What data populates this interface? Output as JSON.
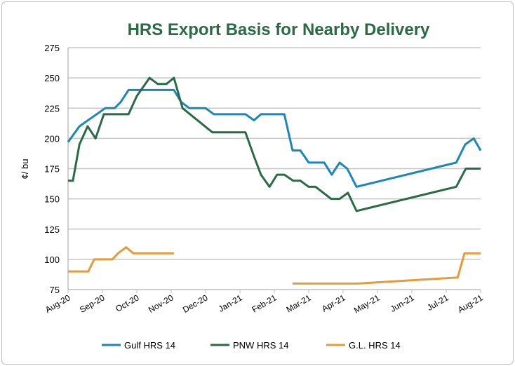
{
  "chart_data": {
    "type": "line",
    "title": "HRS Export Basis for Nearby Delivery",
    "ylabel": "¢/ bu",
    "xlabel": "",
    "ylim": [
      75,
      275
    ],
    "yticks": [
      75,
      100,
      125,
      150,
      175,
      200,
      225,
      250,
      275
    ],
    "xlim": [
      0,
      12
    ],
    "xtick_labels": [
      "Aug-20",
      "Sep-20",
      "Oct-20",
      "Nov-20",
      "Dec-20",
      "Jan-21",
      "Feb-21",
      "Mar-21",
      "Apr-21",
      "May-21",
      "Jun-21",
      "Jul-21",
      "Aug-21"
    ],
    "x_units": "months since Aug-20",
    "grid": true,
    "legend_position": "bottom",
    "series": [
      {
        "name": "Gulf HRS 14",
        "color": "#1a87b5",
        "x": [
          0,
          0.33,
          1.08,
          1.35,
          1.53,
          1.76,
          3.08,
          3.29,
          3.53,
          4.0,
          4.24,
          5.16,
          5.41,
          5.61,
          6.29,
          6.53,
          6.76,
          7.0,
          7.45,
          7.67,
          7.9,
          8.12,
          8.39,
          11.29,
          11.55,
          11.8,
          12.0
        ],
        "y": [
          197,
          210,
          225,
          225,
          230,
          240,
          240,
          230,
          225,
          225,
          220,
          220,
          215,
          220,
          220,
          190,
          190,
          180,
          180,
          170,
          180,
          175,
          160,
          180,
          195,
          200,
          190
        ]
      },
      {
        "name": "PNW HRS 14",
        "color": "#2a6a45",
        "x": [
          0,
          0.14,
          0.33,
          0.57,
          0.8,
          1.04,
          1.76,
          2.0,
          2.37,
          2.61,
          2.86,
          3.08,
          3.33,
          4.2,
          5.16,
          5.41,
          5.61,
          5.86,
          6.08,
          6.29,
          6.55,
          6.76,
          7.0,
          7.2,
          7.65,
          7.9,
          8.14,
          8.39,
          11.29,
          11.57,
          12.0
        ],
        "y": [
          165,
          165,
          195,
          210,
          200,
          220,
          220,
          235,
          250,
          245,
          245,
          250,
          225,
          205,
          205,
          185,
          170,
          160,
          170,
          170,
          165,
          165,
          160,
          160,
          150,
          150,
          155,
          140,
          160,
          175,
          175
        ]
      },
      {
        "name": "G.L. HRS 14",
        "color": "#e39c3c",
        "x": [
          0,
          0.59,
          0.76,
          1.29,
          1.45,
          1.69,
          1.9,
          3.08,
          null,
          6.53,
          8.43,
          11.33,
          11.53,
          12.0
        ],
        "y": [
          90,
          90,
          100,
          100,
          105,
          110,
          105,
          105,
          null,
          80,
          80,
          85,
          105,
          105
        ]
      }
    ]
  }
}
